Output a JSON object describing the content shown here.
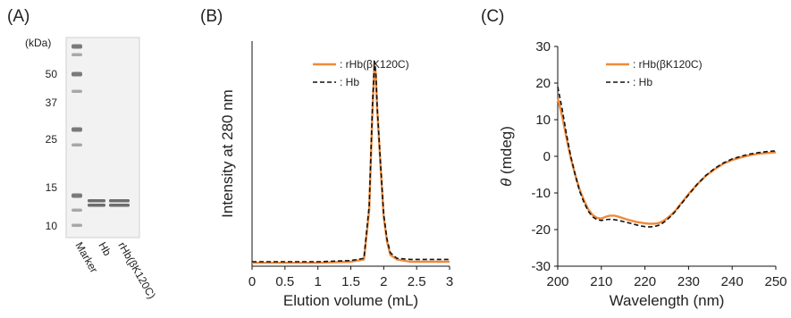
{
  "panel_labels": {
    "a": "(A)",
    "b": "(B)",
    "c": "(C)"
  },
  "gel": {
    "unit": "(kDa)",
    "markers": [
      "50",
      "37",
      "25",
      "15",
      "10"
    ],
    "marker_kda": [
      50,
      37,
      25,
      15,
      10
    ],
    "lanes": [
      "Marker",
      "Hb",
      "rHb(βK120C)"
    ]
  },
  "colors": {
    "orange": "#F08A3A",
    "black": "#111111",
    "gel_bg": "#F2F2F2"
  },
  "chart_data": [
    {
      "type": "line",
      "panel": "(B)",
      "xlabel": "Elution volume (mL)",
      "ylabel": "Intensity at 280 nm",
      "xlim": [
        0,
        3
      ],
      "ylim": [
        0,
        1
      ],
      "xticks": [
        "0",
        "0.5",
        "1",
        "1.5",
        "2",
        "2.5",
        "3"
      ],
      "xtick_values": [
        0,
        0.5,
        1,
        1.5,
        2,
        2.5,
        3
      ],
      "grid": false,
      "legend_position": "top-right",
      "series": [
        {
          "name": ": rHb(βK120C)",
          "style": "solid",
          "color": "#F08A3A",
          "x": [
            0,
            0.5,
            1.0,
            1.5,
            1.7,
            1.78,
            1.83,
            1.86,
            1.88,
            1.9,
            1.95,
            2.0,
            2.05,
            2.1,
            2.2,
            2.4,
            3.0
          ],
          "y": [
            0.015,
            0.015,
            0.015,
            0.02,
            0.03,
            0.25,
            0.7,
            0.9,
            0.85,
            0.7,
            0.45,
            0.22,
            0.11,
            0.05,
            0.03,
            0.02,
            0.02
          ]
        },
        {
          "name": ": Hb",
          "style": "dashed",
          "color": "#111111",
          "x": [
            0,
            0.5,
            1.0,
            1.5,
            1.7,
            1.78,
            1.83,
            1.86,
            1.88,
            1.9,
            1.95,
            2.0,
            2.05,
            2.1,
            2.2,
            2.4,
            3.0
          ],
          "y": [
            0.02,
            0.02,
            0.02,
            0.025,
            0.035,
            0.27,
            0.72,
            0.91,
            0.86,
            0.71,
            0.46,
            0.23,
            0.12,
            0.06,
            0.035,
            0.03,
            0.03
          ]
        }
      ]
    },
    {
      "type": "line",
      "panel": "(C)",
      "xlabel": "Wavelength (nm)",
      "ylabel_symbol": "θ",
      "ylabel": " (mdeg)",
      "xlim": [
        200,
        250
      ],
      "ylim": [
        -30,
        30
      ],
      "xticks": [
        "200",
        "210",
        "220",
        "230",
        "240",
        "250"
      ],
      "xtick_values": [
        200,
        210,
        220,
        230,
        240,
        250
      ],
      "yticks": [
        "30",
        "20",
        "10",
        "0",
        "-10",
        "-20",
        "-30"
      ],
      "ytick_values": [
        30,
        20,
        10,
        0,
        -10,
        -20,
        -30
      ],
      "grid": false,
      "legend_position": "top-right",
      "series": [
        {
          "name": ": rHb(βK120C)",
          "style": "solid",
          "color": "#F08A3A",
          "x": [
            200,
            201,
            202,
            203,
            204,
            205,
            206,
            207,
            208,
            209,
            210,
            211,
            212,
            213,
            214,
            215,
            216,
            217,
            218,
            219,
            220,
            221,
            222,
            223,
            224,
            225,
            226,
            227,
            228,
            229,
            230,
            232,
            234,
            236,
            238,
            240,
            242,
            244,
            246,
            248,
            250
          ],
          "y": [
            16,
            11,
            5,
            -0.5,
            -5,
            -9,
            -12,
            -14.5,
            -16,
            -16.8,
            -17,
            -16.5,
            -16.2,
            -16.2,
            -16.5,
            -16.9,
            -17.3,
            -17.6,
            -17.9,
            -18.1,
            -18.3,
            -18.4,
            -18.4,
            -18.3,
            -17.8,
            -17,
            -16,
            -14.8,
            -13.3,
            -11.8,
            -10.3,
            -7.6,
            -5.3,
            -3.5,
            -2,
            -1,
            -0.3,
            0.3,
            0.7,
            0.9,
            1.1
          ]
        },
        {
          "name": ": Hb",
          "style": "dashed",
          "color": "#111111",
          "x": [
            200,
            201,
            202,
            203,
            204,
            205,
            206,
            207,
            208,
            209,
            210,
            211,
            212,
            213,
            214,
            215,
            216,
            217,
            218,
            219,
            220,
            221,
            222,
            223,
            224,
            225,
            226,
            227,
            228,
            229,
            230,
            232,
            234,
            236,
            238,
            240,
            242,
            244,
            246,
            248,
            250
          ],
          "y": [
            19,
            13,
            6,
            0,
            -5,
            -9.5,
            -12.5,
            -15,
            -16.5,
            -17.3,
            -17.5,
            -17.3,
            -17.2,
            -17.3,
            -17.5,
            -17.8,
            -18.1,
            -18.4,
            -18.7,
            -19,
            -19.2,
            -19.3,
            -19.2,
            -18.9,
            -18.3,
            -17.4,
            -16.3,
            -15,
            -13.5,
            -12,
            -10.5,
            -7.6,
            -5.2,
            -3.3,
            -1.8,
            -0.7,
            0,
            0.6,
            1,
            1.3,
            1.5
          ]
        }
      ]
    }
  ]
}
